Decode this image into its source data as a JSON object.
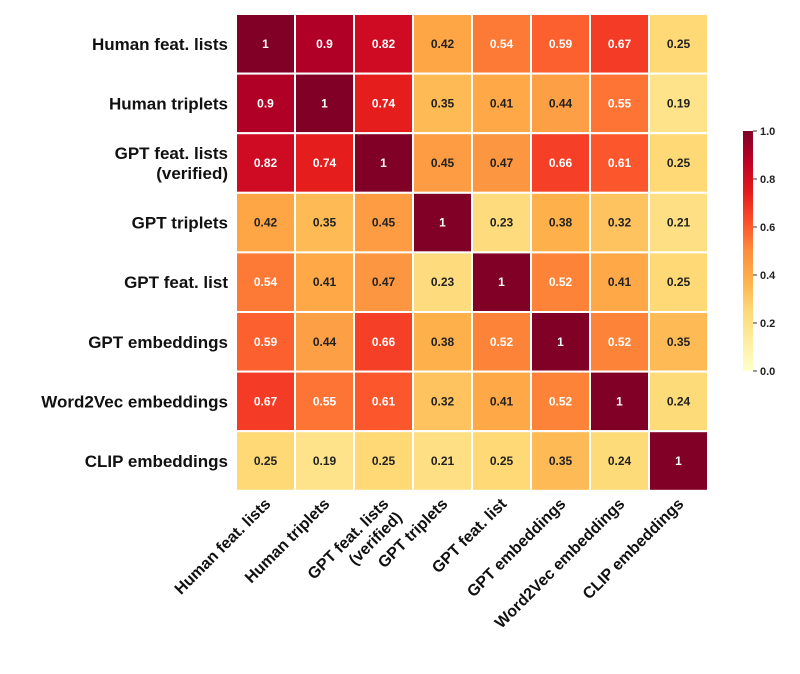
{
  "chart_data": {
    "type": "heatmap",
    "row_labels": [
      [
        "Human feat. lists"
      ],
      [
        "Human triplets"
      ],
      [
        "GPT feat. lists",
        "(verified)"
      ],
      [
        "GPT triplets"
      ],
      [
        "GPT feat. list"
      ],
      [
        "GPT embeddings"
      ],
      [
        "Word2Vec embeddings"
      ],
      [
        "CLIP embeddings"
      ]
    ],
    "col_labels": [
      [
        "Human feat. lists"
      ],
      [
        "Human triplets"
      ],
      [
        "GPT feat. lists",
        "(verified)"
      ],
      [
        "GPT triplets"
      ],
      [
        "GPT feat. list"
      ],
      [
        "GPT embeddings"
      ],
      [
        "Word2Vec embeddings"
      ],
      [
        "CLIP embeddings"
      ]
    ],
    "values": [
      [
        1,
        0.9,
        0.82,
        0.42,
        0.54,
        0.59,
        0.67,
        0.25
      ],
      [
        0.9,
        1,
        0.74,
        0.35,
        0.41,
        0.44,
        0.55,
        0.19
      ],
      [
        0.82,
        0.74,
        1,
        0.45,
        0.47,
        0.66,
        0.61,
        0.25
      ],
      [
        0.42,
        0.35,
        0.45,
        1,
        0.23,
        0.38,
        0.32,
        0.21
      ],
      [
        0.54,
        0.41,
        0.47,
        0.23,
        1,
        0.52,
        0.41,
        0.25
      ],
      [
        0.59,
        0.44,
        0.66,
        0.38,
        0.52,
        1,
        0.52,
        0.35
      ],
      [
        0.67,
        0.55,
        0.61,
        0.32,
        0.41,
        0.52,
        1,
        0.24
      ],
      [
        0.25,
        0.19,
        0.25,
        0.21,
        0.25,
        0.35,
        0.24,
        1
      ]
    ],
    "colorscale": "YlOrRd",
    "vmin": 0.0,
    "vmax": 1.0,
    "colorbar_ticks": [
      "0.0",
      "0.2",
      "0.4",
      "0.6",
      "0.8",
      "1.0"
    ],
    "annotate": true,
    "grid_line_color": "#ffffff"
  }
}
